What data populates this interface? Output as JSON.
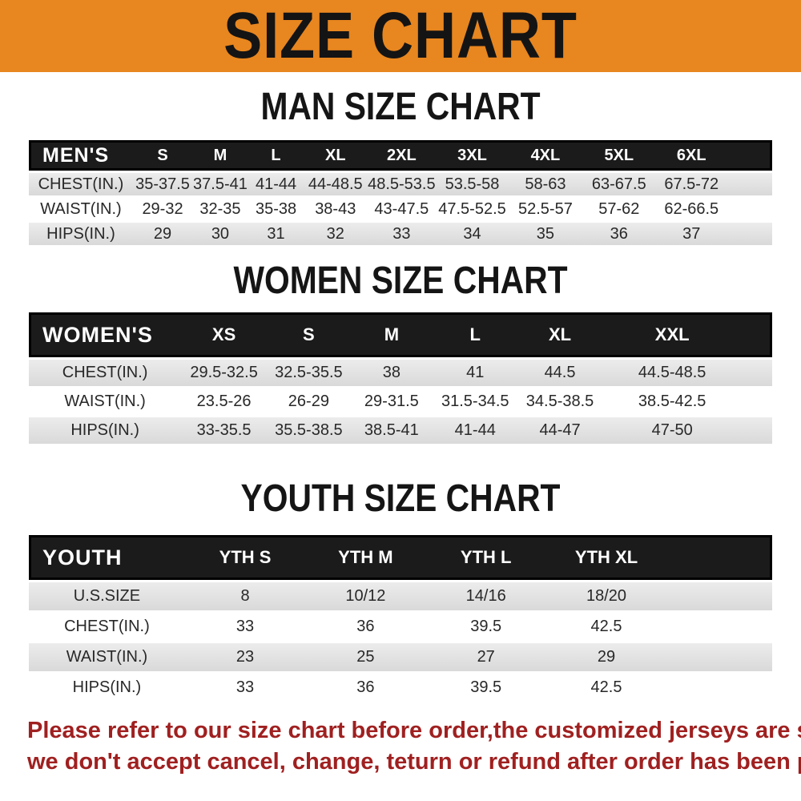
{
  "banner": {
    "title": "SIZE CHART",
    "bg_color": "#E8861F",
    "text_color": "#141414"
  },
  "sections": [
    {
      "title": "MAN SIZE CHART",
      "table": {
        "header_label": "MEN'S",
        "header_bg_color": "#1b1b1b",
        "columns": [
          "S",
          "M",
          "L",
          "XL",
          "2XL",
          "3XL",
          "4XL",
          "5XL",
          "6XL"
        ],
        "rows": [
          {
            "label": "CHEST(IN.)",
            "values": [
              "35-37.5",
              "37.5-41",
              "41-44",
              "44-48.5",
              "48.5-53.5",
              "53.5-58",
              "58-63",
              "63-67.5",
              "67.5-72"
            ]
          },
          {
            "label": "WAIST(IN.)",
            "values": [
              "29-32",
              "32-35",
              "35-38",
              "38-43",
              "43-47.5",
              "47.5-52.5",
              "52.5-57",
              "57-62",
              "62-66.5"
            ]
          },
          {
            "label": "HIPS(IN.)",
            "values": [
              "29",
              "30",
              "31",
              "32",
              "33",
              "34",
              "35",
              "36",
              "37"
            ]
          }
        ]
      }
    },
    {
      "title": "WOMEN SIZE CHART",
      "table": {
        "header_label": "WOMEN'S",
        "header_bg_color": "#1b1b1b",
        "columns": [
          "XS",
          "S",
          "M",
          "L",
          "XL",
          "XXL"
        ],
        "rows": [
          {
            "label": "CHEST(IN.)",
            "values": [
              "29.5-32.5",
              "32.5-35.5",
              "38",
              "41",
              "44.5",
              "44.5-48.5"
            ]
          },
          {
            "label": "WAIST(IN.)",
            "values": [
              "23.5-26",
              "26-29",
              "29-31.5",
              "31.5-34.5",
              "34.5-38.5",
              "38.5-42.5"
            ]
          },
          {
            "label": "HIPS(IN.)",
            "values": [
              "33-35.5",
              "35.5-38.5",
              "38.5-41",
              "41-44",
              "44-47",
              "47-50"
            ]
          }
        ]
      }
    },
    {
      "title": "YOUTH SIZE CHART",
      "table": {
        "header_label": "YOUTH",
        "header_bg_color": "#1b1b1b",
        "columns": [
          "YTH S",
          "YTH M",
          "YTH L",
          "YTH XL"
        ],
        "rows": [
          {
            "label": "U.S.SIZE",
            "values": [
              "8",
              "10/12",
              "14/16",
              "18/20"
            ]
          },
          {
            "label": "CHEST(IN.)",
            "values": [
              "33",
              "36",
              "39.5",
              "42.5"
            ]
          },
          {
            "label": "WAIST(IN.)",
            "values": [
              "23",
              "25",
              "27",
              "29"
            ]
          },
          {
            "label": "HIPS(IN.)",
            "values": [
              "33",
              "36",
              "39.5",
              "42.5"
            ]
          }
        ]
      }
    }
  ],
  "disclaimer": {
    "color": "#A02020",
    "lines": [
      "Please refer to our size chart before order,the customized jerseys are special products,",
      "we don't accept cancel, change, teturn or refund after order has been placed!"
    ]
  }
}
